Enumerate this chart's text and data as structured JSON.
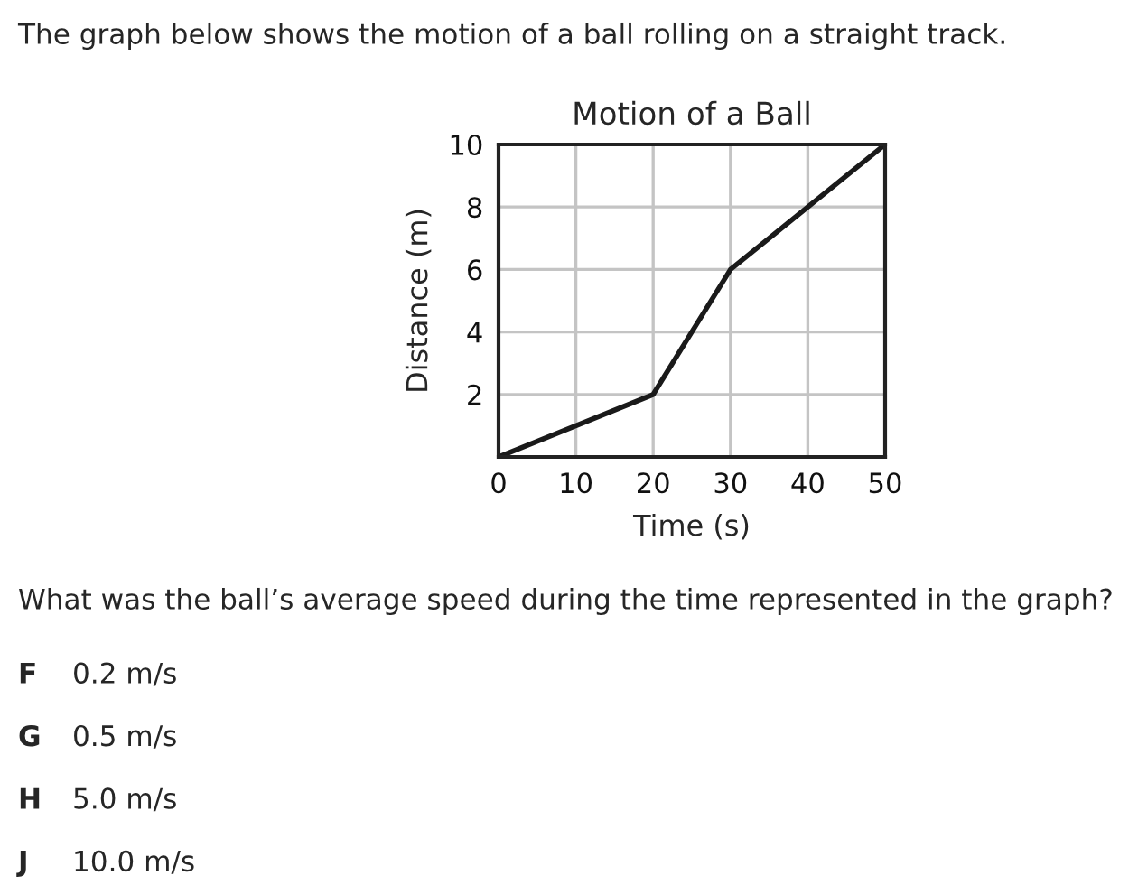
{
  "chart_data": {
    "type": "line",
    "title": "Motion of a Ball",
    "xlabel": "Time (s)",
    "ylabel": "Distance (m)",
    "x": [
      0,
      20,
      30,
      50
    ],
    "series": [
      {
        "color": "#1a1a1a",
        "values": [
          0,
          2,
          6,
          10
        ]
      }
    ],
    "xlim": [
      0,
      50
    ],
    "ylim": [
      0,
      10
    ],
    "xticks": [
      0,
      10,
      20,
      30,
      40,
      50
    ],
    "yticks": [
      {
        "value": 0,
        "label": null
      },
      2,
      4,
      6,
      8,
      10
    ],
    "grid": true,
    "annotations": [
      "The graph below shows the motion of a ball rolling on a straight track.",
      "What was the ball’s average speed during the time represented in the graph?",
      "F",
      "0.2 m/s",
      "G",
      "0.5 m/s",
      "H",
      "5.0 m/s",
      "J",
      "10.0 m/s"
    ]
  }
}
